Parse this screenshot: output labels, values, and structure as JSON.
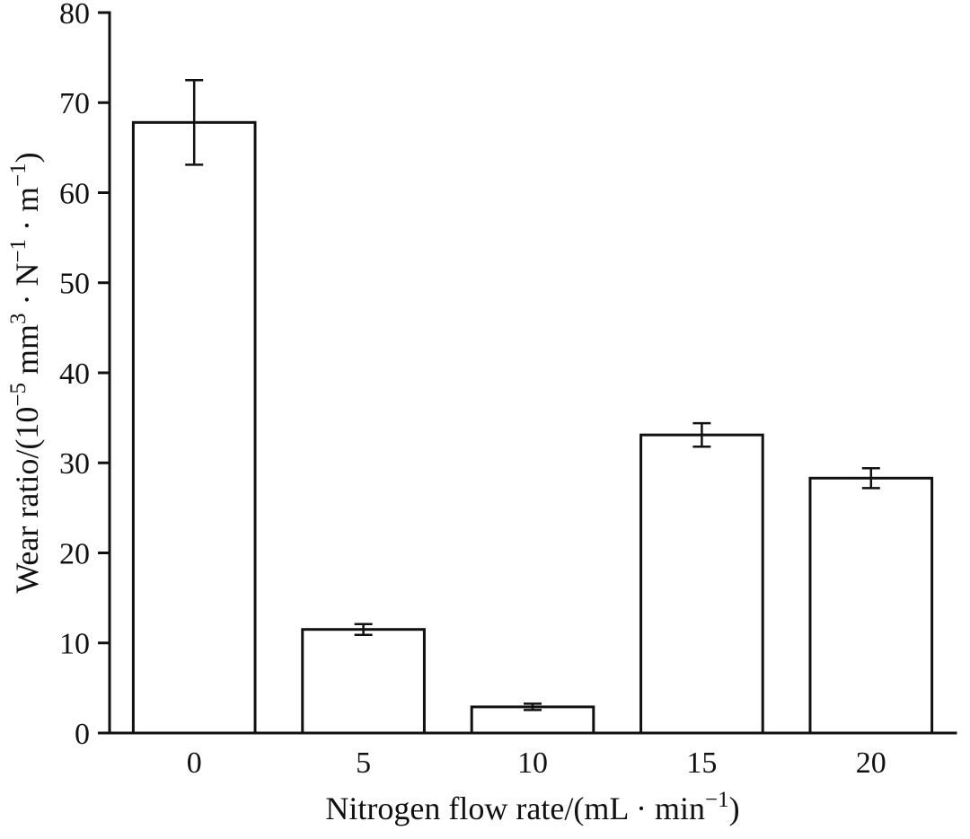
{
  "chart_data": {
    "type": "bar",
    "title": "",
    "xlabel": "Nitrogen flow rate/(mL · min⁻¹)",
    "ylabel": "Wear ratio/(10⁻⁵ mm³ · N⁻¹ · m⁻¹)",
    "xlabel_parts": [
      {
        "text": "Nitrogen flow rate/(mL · min"
      },
      {
        "text": "−1",
        "sup": true
      },
      {
        "text": ")"
      }
    ],
    "ylabel_parts": [
      {
        "text": "Wear ratio/(10"
      },
      {
        "text": "−5",
        "sup": true
      },
      {
        "text": " mm"
      },
      {
        "text": "3",
        "sup": true
      },
      {
        "text": " · N"
      },
      {
        "text": "−1",
        "sup": true
      },
      {
        "text": " · m"
      },
      {
        "text": "−1",
        "sup": true
      },
      {
        "text": ")"
      }
    ],
    "categories": [
      "0",
      "5",
      "10",
      "15",
      "20"
    ],
    "values": [
      67.8,
      11.5,
      2.9,
      33.1,
      28.3
    ],
    "errors": [
      4.7,
      0.6,
      0.35,
      1.3,
      1.1
    ],
    "ylim": [
      0,
      80
    ],
    "yticks": [
      0,
      10,
      20,
      30,
      40,
      50,
      60,
      70,
      80
    ],
    "grid": false,
    "legend": "none",
    "bar_fill": "#ffffff",
    "bar_stroke": "#111111",
    "axis_color": "#111111",
    "background": "#ffffff"
  }
}
